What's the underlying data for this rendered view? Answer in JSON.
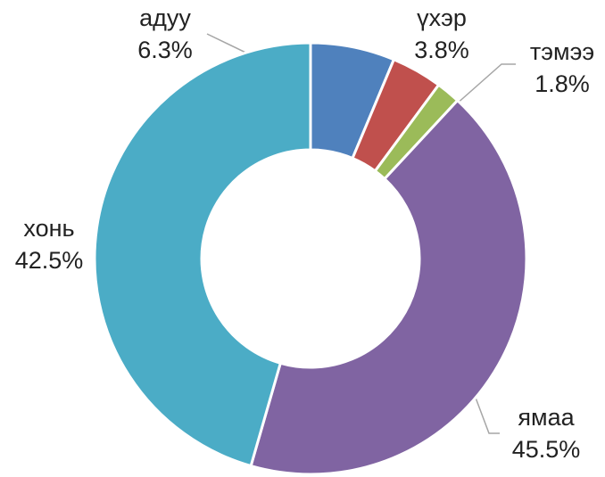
{
  "chart_data": {
    "type": "donut",
    "categories": [
      "адуу",
      "үхэр",
      "тэмээ",
      "хонь",
      "ямаа"
    ],
    "values": [
      6.3,
      3.8,
      1.8,
      42.5,
      45.5
    ],
    "value_labels": [
      "6.3%",
      "3.8%",
      "1.8%",
      "42.5%",
      "45.5%"
    ],
    "colors": [
      "#4f81bd",
      "#c0504d",
      "#9bbb59",
      "#8064a2",
      "#4bacc6"
    ]
  }
}
